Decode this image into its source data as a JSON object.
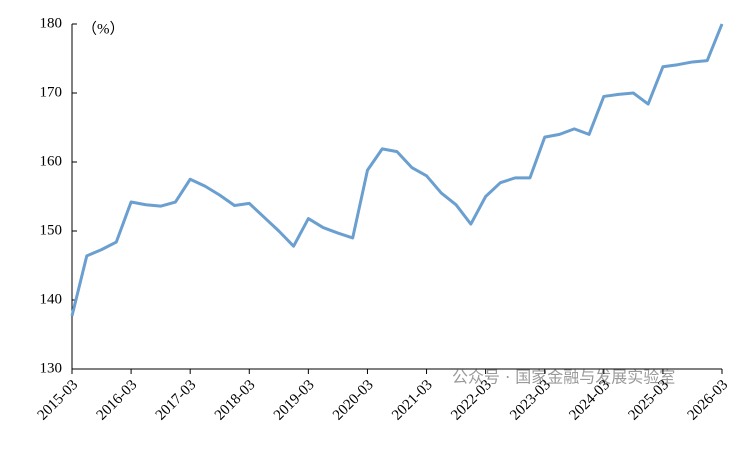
{
  "chart_data": {
    "type": "line",
    "y_label": "（%）",
    "annotation": "公众号 · 国家金融与发展实验室",
    "categories": [
      "2015-03",
      null,
      null,
      null,
      "2016-03",
      null,
      null,
      null,
      "2017-03",
      null,
      null,
      null,
      "2018-03",
      null,
      null,
      null,
      "2019-03",
      null,
      null,
      null,
      "2020-03",
      null,
      null,
      null,
      "2021-03",
      null,
      null,
      null,
      "2022-03",
      null,
      null,
      null,
      "2023-03",
      null,
      null,
      null,
      "2024-03",
      null,
      null,
      null,
      "2025-03",
      null,
      null,
      null,
      "2026-03"
    ],
    "series": [
      {
        "name": null,
        "color": "#6a9fd0",
        "values": [
          137.7,
          146.4,
          147.3,
          148.4,
          154.2,
          153.8,
          153.6,
          154.2,
          157.5,
          156.5,
          155.2,
          153.7,
          154.0,
          152.0,
          150.0,
          147.8,
          151.8,
          150.5,
          149.7,
          149.0,
          158.8,
          161.9,
          161.5,
          159.2,
          158.0,
          155.5,
          153.8,
          151.0,
          155.0,
          157.0,
          157.7,
          157.7,
          163.6,
          164.0,
          164.8,
          164.0,
          169.5,
          169.8,
          170.0,
          168.4,
          173.8,
          174.1,
          174.5,
          174.7,
          180.0
        ]
      }
    ],
    "ylim": [
      130,
      180
    ],
    "yticks": [
      130,
      140,
      150,
      160,
      170,
      180
    ]
  }
}
